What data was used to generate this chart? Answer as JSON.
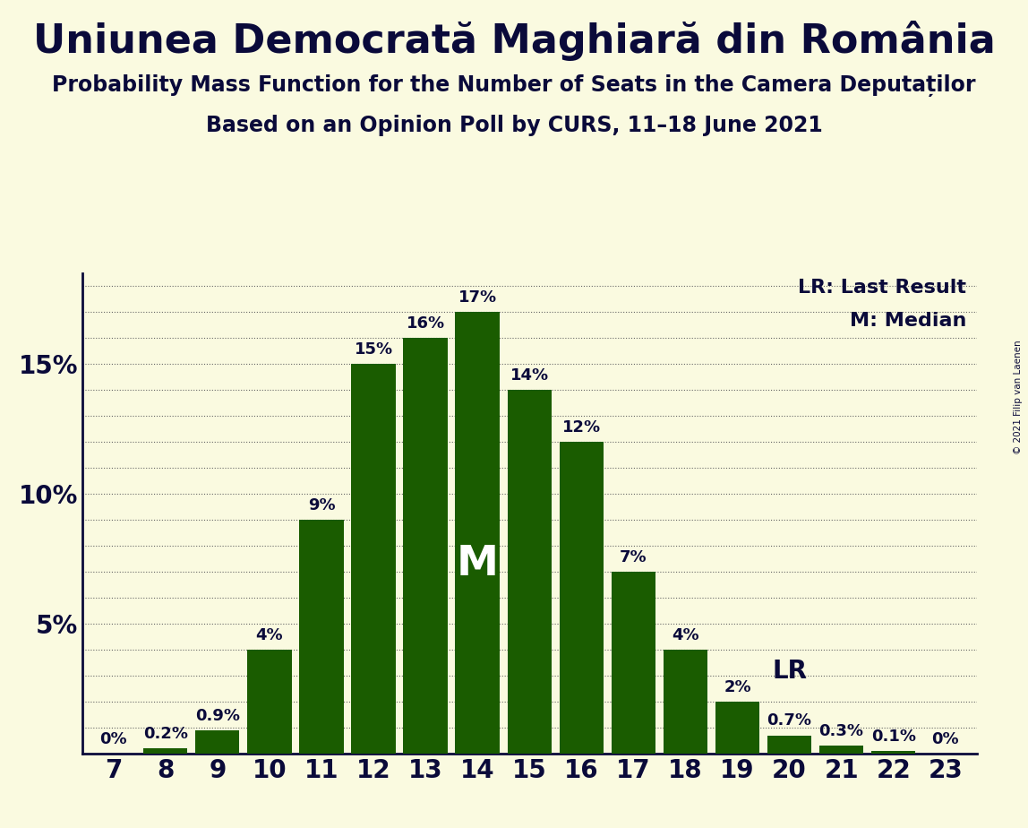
{
  "title": "Uniunea Democrată Maghiară din România",
  "subtitle1": "Probability Mass Function for the Number of Seats in the Camera Deputaților",
  "subtitle2": "Based on an Opinion Poll by CURS, 11–18 June 2021",
  "copyright": "© 2021 Filip van Laenen",
  "categories": [
    7,
    8,
    9,
    10,
    11,
    12,
    13,
    14,
    15,
    16,
    17,
    18,
    19,
    20,
    21,
    22,
    23
  ],
  "values": [
    0.0,
    0.2,
    0.9,
    4.0,
    9.0,
    15.0,
    16.0,
    17.0,
    14.0,
    12.0,
    7.0,
    4.0,
    2.0,
    0.7,
    0.3,
    0.1,
    0.0
  ],
  "labels": [
    "0%",
    "0.2%",
    "0.9%",
    "4%",
    "9%",
    "15%",
    "16%",
    "17%",
    "14%",
    "12%",
    "7%",
    "4%",
    "2%",
    "0.7%",
    "0.3%",
    "0.1%",
    "0%"
  ],
  "bar_color": "#1a5c00",
  "background_color": "#fafae0",
  "text_color": "#0a0a3a",
  "median_seat": 14,
  "lr_seat": 20,
  "ylim": [
    0,
    18.5
  ],
  "legend_lr": "LR: Last Result",
  "legend_m": "M: Median",
  "title_fontsize": 32,
  "subtitle_fontsize": 17,
  "bar_label_fontsize": 13,
  "axis_label_fontsize": 20,
  "legend_fontsize": 16
}
